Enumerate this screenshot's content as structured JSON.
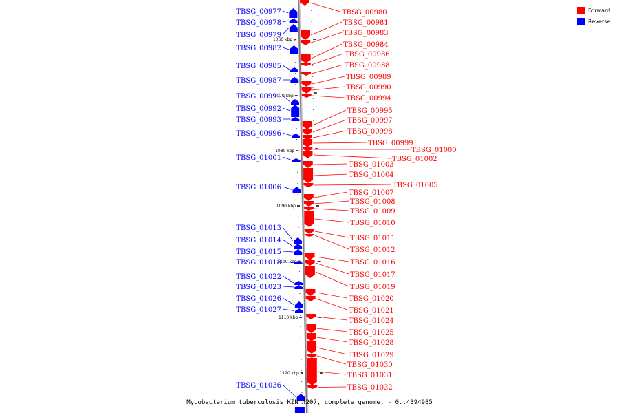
{
  "legend": {
    "forward_label": "Forward",
    "reverse_label": "Reverse",
    "forward_color": "#ff0000",
    "reverse_color": "#0000ff",
    "icon_names": {
      "forward": "forward-swatch-icon",
      "reverse": "reverse-swatch-icon"
    }
  },
  "caption": "Mycobacterium tuberculosis KZN 4207, complete genome. - 0..4394985",
  "ticks": [
    "1060 kbp",
    "1070 kbp",
    "1080 kbp",
    "1090 kbp",
    "1100 kbp",
    "1110 kbp",
    "1120 kbp"
  ],
  "reverse_genes": [
    "TBSG_00977",
    "TBSG_00978",
    "TBSG_00979",
    "TBSG_00982",
    "TBSG_00985",
    "TBSG_00987",
    "TBSG_00991",
    "TBSG_00992",
    "TBSG_00993",
    "TBSG_00996",
    "TBSG_01001",
    "TBSG_01006",
    "TBSG_01013",
    "TBSG_01014",
    "TBSG_01015",
    "TBSG_01018",
    "TBSG_01022",
    "TBSG_01023",
    "TBSG_01026",
    "TBSG_01027",
    "TBSG_01036"
  ],
  "forward_genes": [
    "TBSG_00980",
    "TBSG_00981",
    "TBSG_00983",
    "TBSG_00984",
    "TBSG_00986",
    "TBSG_00988",
    "TBSG_00989",
    "TBSG_00990",
    "TBSG_00994",
    "TBSG_00995",
    "TBSG_00997",
    "TBSG_00998",
    "TBSG_00999",
    "TBSG_01000",
    "TBSG_01002",
    "TBSG_01003",
    "TBSG_01004",
    "TBSG_01005",
    "TBSG_01007",
    "TBSG_01008",
    "TBSG_01009",
    "TBSG_01010",
    "TBSG_01011",
    "TBSG_01012",
    "TBSG_01016",
    "TBSG_01017",
    "TBSG_01019",
    "TBSG_01020",
    "TBSG_01021",
    "TBSG_01024",
    "TBSG_01025",
    "TBSG_01028",
    "TBSG_01029",
    "TBSG_01030",
    "TBSG_01031",
    "TBSG_01032"
  ]
}
